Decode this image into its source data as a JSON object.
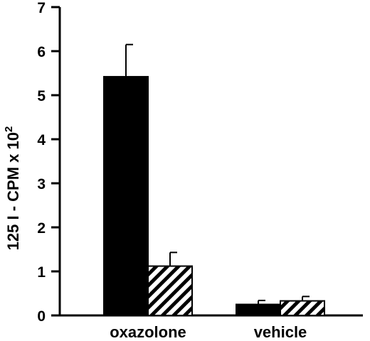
{
  "chart_data": {
    "type": "bar",
    "categories": [
      "oxazolone",
      "vehicle"
    ],
    "series": [
      {
        "fill": "solid-black",
        "values": [
          5.42,
          0.25
        ],
        "errors": [
          0.73,
          0.09
        ]
      },
      {
        "fill": "diagonal-hatch",
        "values": [
          1.12,
          0.33
        ],
        "errors": [
          0.31,
          0.1
        ]
      }
    ],
    "ylim": [
      0,
      7
    ],
    "yticks": [
      "0",
      "1",
      "2",
      "3",
      "4",
      "5",
      "6",
      "7"
    ],
    "ylabel": {
      "prefix": "125 I - CPM x 10",
      "superscript": "2"
    },
    "colors": {
      "solid": "#000000",
      "hatch_stroke": "#000000",
      "hatch_bg": "#ffffff"
    },
    "legend": "none",
    "grid": false
  }
}
